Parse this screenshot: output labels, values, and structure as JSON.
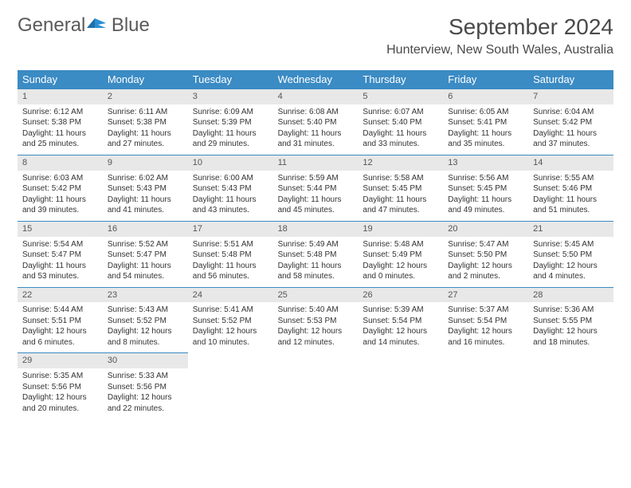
{
  "brand": {
    "name_part1": "General",
    "name_part2": "Blue"
  },
  "title": "September 2024",
  "location": "Hunterview, New South Wales, Australia",
  "colors": {
    "header_bg": "#3b8bc4",
    "header_text": "#ffffff",
    "daynum_bg": "#e8e8e8",
    "border": "#3b8bc4",
    "text": "#333333",
    "logo_gray": "#5a5a5a",
    "logo_blue": "#2a7fbf"
  },
  "fonts": {
    "title_size": 28,
    "location_size": 16,
    "dayheader_size": 13,
    "body_size": 10
  },
  "day_names": [
    "Sunday",
    "Monday",
    "Tuesday",
    "Wednesday",
    "Thursday",
    "Friday",
    "Saturday"
  ],
  "weeks": [
    [
      {
        "num": "1",
        "sunrise": "Sunrise: 6:12 AM",
        "sunset": "Sunset: 5:38 PM",
        "day1": "Daylight: 11 hours",
        "day2": "and 25 minutes."
      },
      {
        "num": "2",
        "sunrise": "Sunrise: 6:11 AM",
        "sunset": "Sunset: 5:38 PM",
        "day1": "Daylight: 11 hours",
        "day2": "and 27 minutes."
      },
      {
        "num": "3",
        "sunrise": "Sunrise: 6:09 AM",
        "sunset": "Sunset: 5:39 PM",
        "day1": "Daylight: 11 hours",
        "day2": "and 29 minutes."
      },
      {
        "num": "4",
        "sunrise": "Sunrise: 6:08 AM",
        "sunset": "Sunset: 5:40 PM",
        "day1": "Daylight: 11 hours",
        "day2": "and 31 minutes."
      },
      {
        "num": "5",
        "sunrise": "Sunrise: 6:07 AM",
        "sunset": "Sunset: 5:40 PM",
        "day1": "Daylight: 11 hours",
        "day2": "and 33 minutes."
      },
      {
        "num": "6",
        "sunrise": "Sunrise: 6:05 AM",
        "sunset": "Sunset: 5:41 PM",
        "day1": "Daylight: 11 hours",
        "day2": "and 35 minutes."
      },
      {
        "num": "7",
        "sunrise": "Sunrise: 6:04 AM",
        "sunset": "Sunset: 5:42 PM",
        "day1": "Daylight: 11 hours",
        "day2": "and 37 minutes."
      }
    ],
    [
      {
        "num": "8",
        "sunrise": "Sunrise: 6:03 AM",
        "sunset": "Sunset: 5:42 PM",
        "day1": "Daylight: 11 hours",
        "day2": "and 39 minutes."
      },
      {
        "num": "9",
        "sunrise": "Sunrise: 6:02 AM",
        "sunset": "Sunset: 5:43 PM",
        "day1": "Daylight: 11 hours",
        "day2": "and 41 minutes."
      },
      {
        "num": "10",
        "sunrise": "Sunrise: 6:00 AM",
        "sunset": "Sunset: 5:43 PM",
        "day1": "Daylight: 11 hours",
        "day2": "and 43 minutes."
      },
      {
        "num": "11",
        "sunrise": "Sunrise: 5:59 AM",
        "sunset": "Sunset: 5:44 PM",
        "day1": "Daylight: 11 hours",
        "day2": "and 45 minutes."
      },
      {
        "num": "12",
        "sunrise": "Sunrise: 5:58 AM",
        "sunset": "Sunset: 5:45 PM",
        "day1": "Daylight: 11 hours",
        "day2": "and 47 minutes."
      },
      {
        "num": "13",
        "sunrise": "Sunrise: 5:56 AM",
        "sunset": "Sunset: 5:45 PM",
        "day1": "Daylight: 11 hours",
        "day2": "and 49 minutes."
      },
      {
        "num": "14",
        "sunrise": "Sunrise: 5:55 AM",
        "sunset": "Sunset: 5:46 PM",
        "day1": "Daylight: 11 hours",
        "day2": "and 51 minutes."
      }
    ],
    [
      {
        "num": "15",
        "sunrise": "Sunrise: 5:54 AM",
        "sunset": "Sunset: 5:47 PM",
        "day1": "Daylight: 11 hours",
        "day2": "and 53 minutes."
      },
      {
        "num": "16",
        "sunrise": "Sunrise: 5:52 AM",
        "sunset": "Sunset: 5:47 PM",
        "day1": "Daylight: 11 hours",
        "day2": "and 54 minutes."
      },
      {
        "num": "17",
        "sunrise": "Sunrise: 5:51 AM",
        "sunset": "Sunset: 5:48 PM",
        "day1": "Daylight: 11 hours",
        "day2": "and 56 minutes."
      },
      {
        "num": "18",
        "sunrise": "Sunrise: 5:49 AM",
        "sunset": "Sunset: 5:48 PM",
        "day1": "Daylight: 11 hours",
        "day2": "and 58 minutes."
      },
      {
        "num": "19",
        "sunrise": "Sunrise: 5:48 AM",
        "sunset": "Sunset: 5:49 PM",
        "day1": "Daylight: 12 hours",
        "day2": "and 0 minutes."
      },
      {
        "num": "20",
        "sunrise": "Sunrise: 5:47 AM",
        "sunset": "Sunset: 5:50 PM",
        "day1": "Daylight: 12 hours",
        "day2": "and 2 minutes."
      },
      {
        "num": "21",
        "sunrise": "Sunrise: 5:45 AM",
        "sunset": "Sunset: 5:50 PM",
        "day1": "Daylight: 12 hours",
        "day2": "and 4 minutes."
      }
    ],
    [
      {
        "num": "22",
        "sunrise": "Sunrise: 5:44 AM",
        "sunset": "Sunset: 5:51 PM",
        "day1": "Daylight: 12 hours",
        "day2": "and 6 minutes."
      },
      {
        "num": "23",
        "sunrise": "Sunrise: 5:43 AM",
        "sunset": "Sunset: 5:52 PM",
        "day1": "Daylight: 12 hours",
        "day2": "and 8 minutes."
      },
      {
        "num": "24",
        "sunrise": "Sunrise: 5:41 AM",
        "sunset": "Sunset: 5:52 PM",
        "day1": "Daylight: 12 hours",
        "day2": "and 10 minutes."
      },
      {
        "num": "25",
        "sunrise": "Sunrise: 5:40 AM",
        "sunset": "Sunset: 5:53 PM",
        "day1": "Daylight: 12 hours",
        "day2": "and 12 minutes."
      },
      {
        "num": "26",
        "sunrise": "Sunrise: 5:39 AM",
        "sunset": "Sunset: 5:54 PM",
        "day1": "Daylight: 12 hours",
        "day2": "and 14 minutes."
      },
      {
        "num": "27",
        "sunrise": "Sunrise: 5:37 AM",
        "sunset": "Sunset: 5:54 PM",
        "day1": "Daylight: 12 hours",
        "day2": "and 16 minutes."
      },
      {
        "num": "28",
        "sunrise": "Sunrise: 5:36 AM",
        "sunset": "Sunset: 5:55 PM",
        "day1": "Daylight: 12 hours",
        "day2": "and 18 minutes."
      }
    ],
    [
      {
        "num": "29",
        "sunrise": "Sunrise: 5:35 AM",
        "sunset": "Sunset: 5:56 PM",
        "day1": "Daylight: 12 hours",
        "day2": "and 20 minutes."
      },
      {
        "num": "30",
        "sunrise": "Sunrise: 5:33 AM",
        "sunset": "Sunset: 5:56 PM",
        "day1": "Daylight: 12 hours",
        "day2": "and 22 minutes."
      },
      null,
      null,
      null,
      null,
      null
    ]
  ]
}
